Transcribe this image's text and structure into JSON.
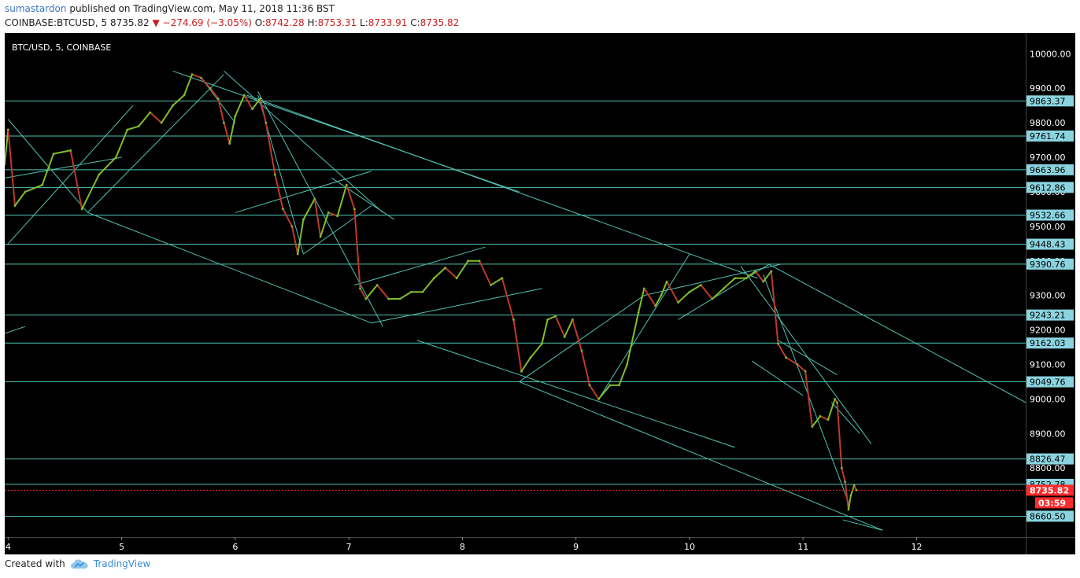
{
  "header": {
    "author": "sumastardon",
    "published": "published on TradingView.com, May 11, 2018 11:36 BST",
    "symbol": "COINBASE:BTCUSD, 5",
    "last": "8735.82",
    "change": "−274.69 (−3.05%)",
    "o_label": "O:",
    "o_value": "8742.28",
    "h_label": "H:",
    "h_value": "8753.31",
    "l_label": "L:",
    "l_value": "8733.91",
    "c_label": "C:",
    "c_value": "8735.82"
  },
  "footer": {
    "created_with": "Created with",
    "brand": "TradingView"
  },
  "colors": {
    "background": "#000000",
    "line": "#4fc3b3",
    "axis_label_bg": "#8ad4df",
    "up": "#7fbf2a",
    "down": "#c0392b",
    "price_tag": "#ff2a2a"
  },
  "chart_data": {
    "type": "line",
    "title": "BTC/USD, 5, COINBASE",
    "xlabel": "",
    "ylabel": "",
    "x_ticks": [
      "4",
      "5",
      "6",
      "7",
      "8",
      "9",
      "10",
      "11",
      "12"
    ],
    "x_range": [
      3.97,
      12.96
    ],
    "ylim": [
      8600,
      10060
    ],
    "y_ticks": [
      10000,
      9900,
      9800,
      9700,
      9600,
      9500,
      9400,
      9300,
      9200,
      9100,
      9000,
      8900,
      8800
    ],
    "y_tick_labels": [
      "10000.00",
      "9900.00",
      "9800.00",
      "9700.00",
      "9600.00",
      "9500.00",
      "9400.00",
      "9300.00",
      "9200.00",
      "9100.00",
      "9000.00",
      "8900.00",
      "8800.00"
    ],
    "levels": [
      9863.37,
      9761.74,
      9663.96,
      9612.86,
      9532.66,
      9448.43,
      9390.76,
      9243.21,
      9162.03,
      9049.76,
      8826.47,
      8752.78,
      8660.5
    ],
    "level_labels": [
      "9863.37",
      "9761.74",
      "9663.96",
      "9612.86",
      "9532.66",
      "9448.43",
      "9390.76",
      "9243.21",
      "9162.03",
      "9049.76",
      "8826.47",
      "8752.78",
      "8660.50"
    ],
    "current_price": 8735.82,
    "current_price_label": "8735.82",
    "countdown": "03:59",
    "price_path": [
      [
        3.97,
        9680
      ],
      [
        4.0,
        9780
      ],
      [
        4.06,
        9560
      ],
      [
        4.15,
        9600
      ],
      [
        4.3,
        9620
      ],
      [
        4.4,
        9710
      ],
      [
        4.55,
        9720
      ],
      [
        4.65,
        9550
      ],
      [
        4.8,
        9650
      ],
      [
        4.95,
        9700
      ],
      [
        5.05,
        9780
      ],
      [
        5.15,
        9790
      ],
      [
        5.25,
        9830
      ],
      [
        5.35,
        9800
      ],
      [
        5.45,
        9850
      ],
      [
        5.55,
        9880
      ],
      [
        5.62,
        9940
      ],
      [
        5.7,
        9930
      ],
      [
        5.78,
        9900
      ],
      [
        5.85,
        9870
      ],
      [
        5.9,
        9800
      ],
      [
        5.95,
        9740
      ],
      [
        6.0,
        9820
      ],
      [
        6.08,
        9880
      ],
      [
        6.15,
        9840
      ],
      [
        6.22,
        9870
      ],
      [
        6.27,
        9800
      ],
      [
        6.35,
        9650
      ],
      [
        6.42,
        9550
      ],
      [
        6.5,
        9500
      ],
      [
        6.55,
        9420
      ],
      [
        6.6,
        9520
      ],
      [
        6.7,
        9580
      ],
      [
        6.75,
        9470
      ],
      [
        6.82,
        9540
      ],
      [
        6.9,
        9530
      ],
      [
        6.98,
        9620
      ],
      [
        7.05,
        9550
      ],
      [
        7.1,
        9320
      ],
      [
        7.15,
        9290
      ],
      [
        7.25,
        9330
      ],
      [
        7.35,
        9290
      ],
      [
        7.45,
        9290
      ],
      [
        7.55,
        9310
      ],
      [
        7.65,
        9310
      ],
      [
        7.75,
        9350
      ],
      [
        7.85,
        9380
      ],
      [
        7.95,
        9350
      ],
      [
        8.05,
        9400
      ],
      [
        8.15,
        9400
      ],
      [
        8.25,
        9330
      ],
      [
        8.35,
        9350
      ],
      [
        8.45,
        9230
      ],
      [
        8.52,
        9080
      ],
      [
        8.6,
        9120
      ],
      [
        8.7,
        9160
      ],
      [
        8.75,
        9230
      ],
      [
        8.82,
        9240
      ],
      [
        8.9,
        9180
      ],
      [
        8.97,
        9230
      ],
      [
        9.05,
        9140
      ],
      [
        9.12,
        9040
      ],
      [
        9.2,
        9000
      ],
      [
        9.3,
        9040
      ],
      [
        9.38,
        9040
      ],
      [
        9.45,
        9100
      ],
      [
        9.55,
        9250
      ],
      [
        9.6,
        9320
      ],
      [
        9.7,
        9270
      ],
      [
        9.75,
        9300
      ],
      [
        9.8,
        9340
      ],
      [
        9.9,
        9280
      ],
      [
        10.0,
        9310
      ],
      [
        10.1,
        9330
      ],
      [
        10.2,
        9290
      ],
      [
        10.3,
        9320
      ],
      [
        10.4,
        9350
      ],
      [
        10.5,
        9350
      ],
      [
        10.58,
        9370
      ],
      [
        10.65,
        9340
      ],
      [
        10.72,
        9370
      ],
      [
        10.78,
        9160
      ],
      [
        10.85,
        9120
      ],
      [
        10.95,
        9100
      ],
      [
        11.02,
        9080
      ],
      [
        11.08,
        8920
      ],
      [
        11.15,
        8950
      ],
      [
        11.22,
        8940
      ],
      [
        11.28,
        9000
      ],
      [
        11.3,
        8990
      ],
      [
        11.34,
        8800
      ],
      [
        11.37,
        8760
      ],
      [
        11.4,
        8680
      ],
      [
        11.42,
        8720
      ],
      [
        11.45,
        8750
      ],
      [
        11.47,
        8736
      ]
    ]
  }
}
